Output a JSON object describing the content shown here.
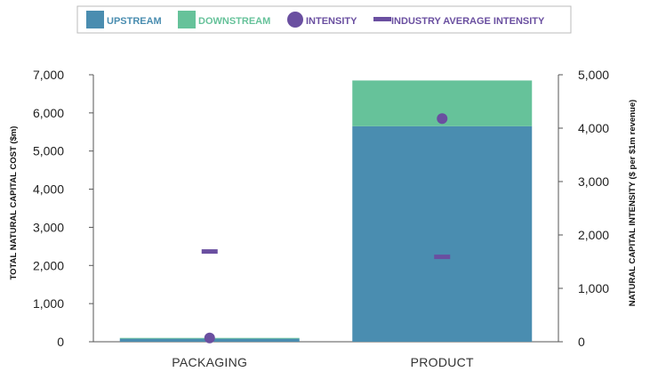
{
  "chart_data": {
    "type": "bar",
    "stacked": true,
    "categories": [
      "PACKAGING",
      "PRODUCT"
    ],
    "series": [
      {
        "name": "UPSTREAM",
        "kind": "bar",
        "axis": "left",
        "color": "#4a8db0",
        "values": [
          80,
          5650
        ]
      },
      {
        "name": "DOWNSTREAM",
        "kind": "bar",
        "axis": "left",
        "color": "#66c29a",
        "values": [
          20,
          1200
        ]
      },
      {
        "name": "INTENSITY",
        "kind": "dot",
        "axis": "right",
        "color": "#6a4fa0",
        "values": [
          70,
          4180
        ]
      },
      {
        "name": "INDUSTRY AVERAGE INTENSITY",
        "kind": "dash",
        "axis": "right",
        "color": "#6a4fa0",
        "values": [
          1690,
          1590
        ]
      }
    ],
    "ylabel_left": "TOTAL NATURAL CAPITAL COST ($m)",
    "ylabel_right": "NATURAL CAPITAL INTENSITY ($ per $1m revenue)",
    "ylim_left": [
      0,
      7000
    ],
    "ylim_right": [
      0,
      5000
    ],
    "yticks_left": [
      "0",
      "1,000",
      "2,000",
      "3,000",
      "4,000",
      "5,000",
      "6,000",
      "7,000"
    ],
    "yticks_right": [
      "0",
      "1,000",
      "2,000",
      "3,000",
      "4,000",
      "5,000"
    ],
    "legend_position": "top",
    "grid": false
  }
}
